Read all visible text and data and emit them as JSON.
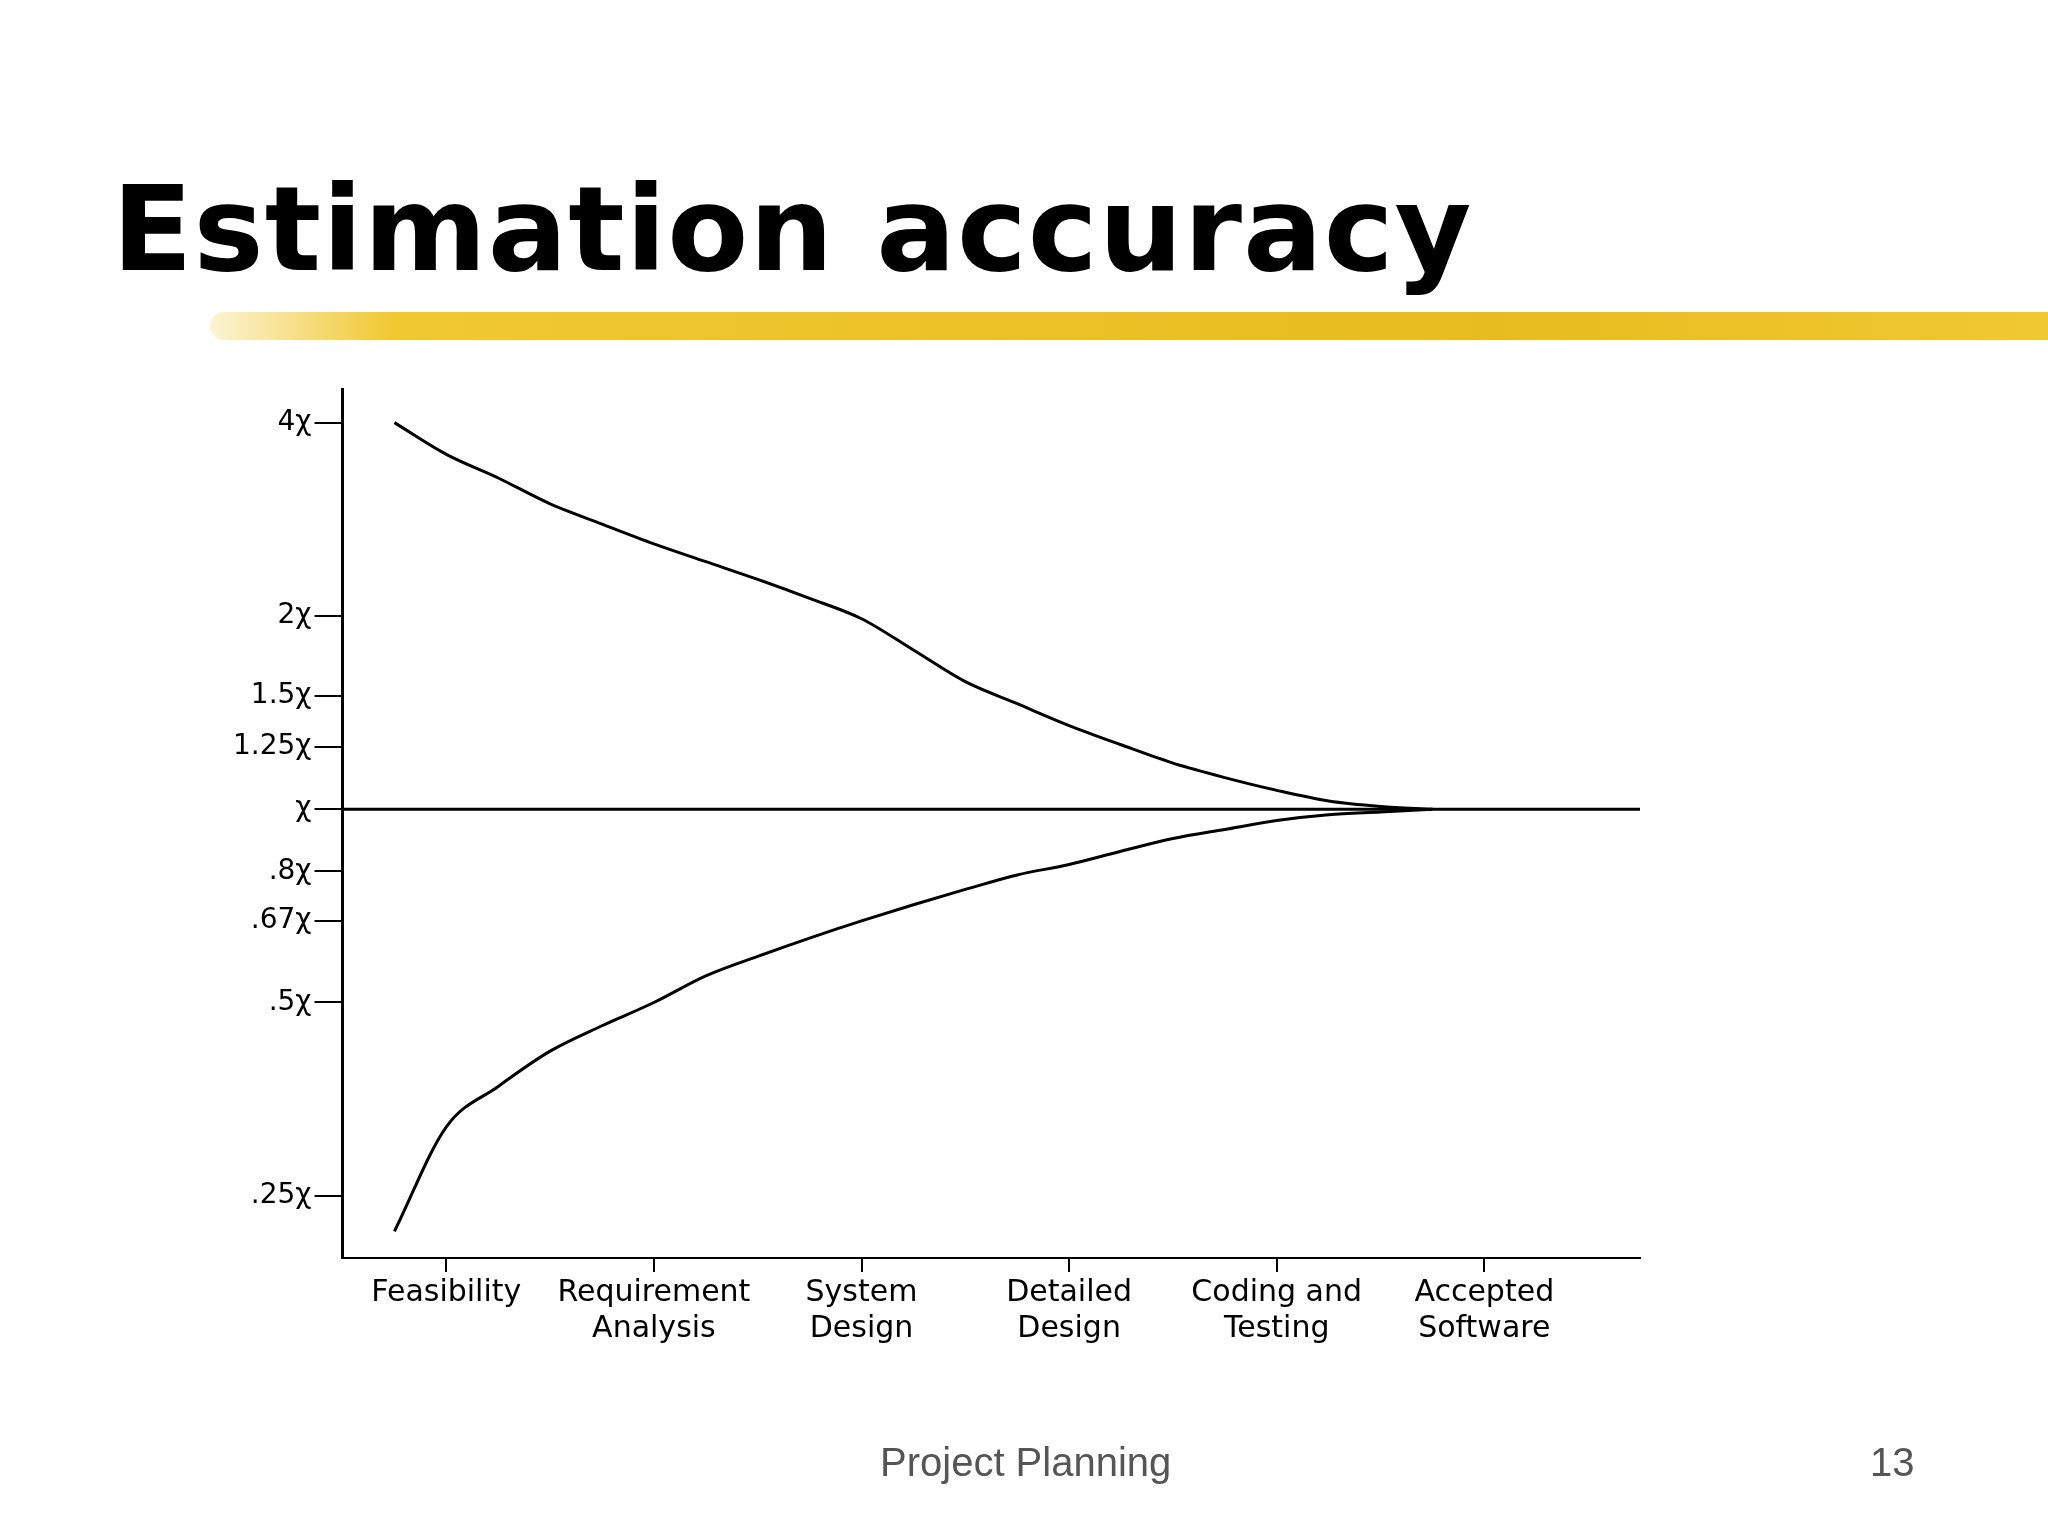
{
  "chart_data": {
    "type": "line",
    "title": "Estimation accuracy",
    "annotations": [
      "Project Planning",
      "13"
    ],
    "categories": [
      null,
      null,
      "Feasibility",
      null,
      null,
      null,
      "Requirement\nAnalysis",
      null,
      null,
      null,
      "System\nDesign",
      null,
      null,
      null,
      "Detailed\nDesign",
      null,
      null,
      null,
      "Coding and\nTesting",
      null,
      null,
      null,
      "Accepted\nSoftware",
      null,
      null,
      null
    ],
    "log": "y",
    "ylim": [
      0.2,
      4.5
    ],
    "yticks": [
      {
        "value": 4,
        "label": "4χ"
      },
      {
        "value": 2,
        "label": "2χ"
      },
      {
        "value": 1.5,
        "label": "1.5χ"
      },
      {
        "value": 1.25,
        "label": "1.25χ"
      },
      {
        "value": 1,
        "label": "χ"
      },
      {
        "value": 0.8,
        "label": ".8χ"
      },
      {
        "value": 0.67,
        "label": ".67χ"
      },
      {
        "value": 0.5,
        "label": ".5χ"
      },
      {
        "value": 0.25,
        "label": ".25χ"
      }
    ],
    "grid": false,
    "legend": false,
    "marker": "none",
    "line_style": "solid",
    "series": [
      {
        "color": "#000000",
        "values": [
          null,
          4,
          3.57,
          3.28,
          2.99,
          2.78,
          2.59,
          2.43,
          2.28,
          2.13,
          1.98,
          1.77,
          1.58,
          1.46,
          1.35,
          1.26,
          1.18,
          1.12,
          1.07,
          1.03,
          1.01,
          1,
          null,
          null,
          null,
          null
        ]
      },
      {
        "color": "#000000",
        "values": [
          null,
          0.22,
          0.32,
          0.37,
          0.42,
          0.46,
          0.5,
          0.55,
          0.59,
          0.63,
          0.67,
          0.71,
          0.75,
          0.79,
          0.82,
          0.86,
          0.9,
          0.93,
          0.96,
          0.98,
          0.99,
          1,
          null,
          null,
          null,
          null
        ]
      },
      {
        "color": "#000000",
        "values": [
          1,
          1,
          1,
          1,
          1,
          1,
          1,
          1,
          1,
          1,
          1,
          1,
          1,
          1,
          1,
          1,
          1,
          1,
          1,
          1,
          1,
          1,
          1,
          1,
          1,
          1
        ]
      }
    ]
  }
}
